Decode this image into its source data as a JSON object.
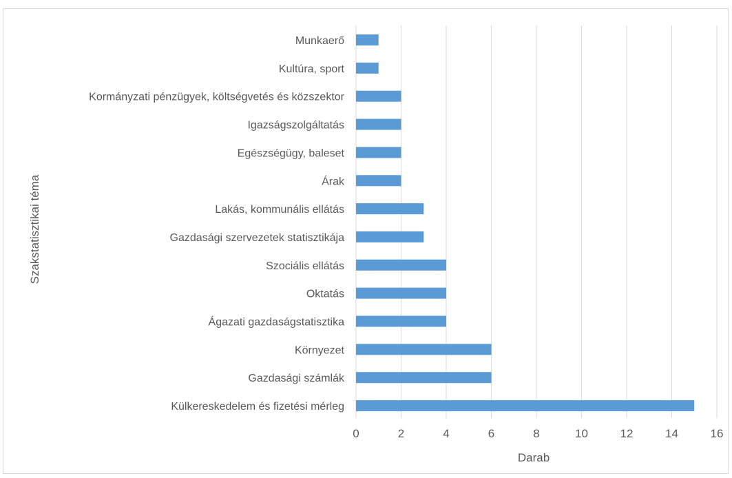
{
  "chart_data": {
    "type": "bar",
    "orientation": "horizontal",
    "categories": [
      "Munkaerő",
      "Kultúra, sport",
      "Kormányzati pénzügyek, költségvetés és közszektor",
      "Igazságszolgáltatás",
      "Egészségügy, baleset",
      "Árak",
      "Lakás, kommunális ellátás",
      "Gazdasági szervezetek statisztikája",
      "Szociális ellátás",
      "Oktatás",
      "Ágazati gazdaságstatisztika",
      "Környezet",
      "Gazdasági számlák",
      "Külkereskedelem és fizetési mérleg"
    ],
    "values": [
      1,
      1,
      2,
      2,
      2,
      2,
      3,
      3,
      4,
      4,
      4,
      6,
      6,
      15
    ],
    "xlabel": "Darab",
    "ylabel": "Szakstatisztikai téma",
    "xlim": [
      0,
      16
    ],
    "xticks": [
      "0",
      "2",
      "4",
      "6",
      "8",
      "10",
      "12",
      "14",
      "16"
    ],
    "grid": "vertical",
    "legend": "none",
    "bar_color": "#5b9bd5",
    "grid_color": "#d9d9d9",
    "text_color": "#595959"
  }
}
